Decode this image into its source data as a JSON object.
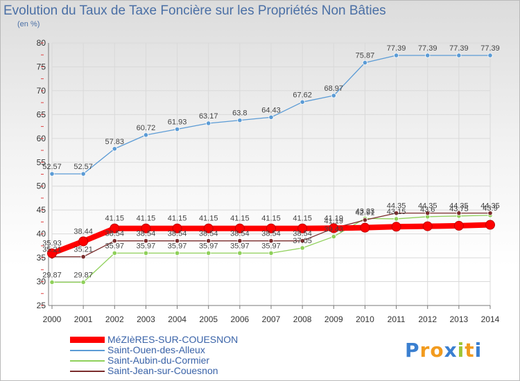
{
  "title": "Evolution du Taux de Taxe Foncière sur les Propriétés Non Bâties",
  "unit_label": "(en %)",
  "logo": {
    "letters": [
      "P",
      "r",
      "o",
      "x",
      "i",
      "t",
      "i"
    ],
    "colors": [
      "#3a7fd0",
      "#f29b1e",
      "#f29b1e",
      "#3a7fd0",
      "#9ec536",
      "#f29b1e",
      "#3a7fd0"
    ]
  },
  "chart_data": {
    "type": "line",
    "title": "Evolution du Taux de Taxe Foncière sur les Propriétés Non Bâties",
    "ylabel": "(en %)",
    "xlabel": "",
    "ylim": [
      25,
      80
    ],
    "yticks": [
      25,
      30,
      35,
      40,
      45,
      50,
      55,
      60,
      65,
      70,
      75,
      80
    ],
    "categories": [
      "2000",
      "2001",
      "2002",
      "2003",
      "2004",
      "2005",
      "2006",
      "2007",
      "2008",
      "2009",
      "2010",
      "2011",
      "2012",
      "2013",
      "2014"
    ],
    "grid": true,
    "series": [
      {
        "name": "MéZIèRES-SUR-COUESNON",
        "color": "#ff0000",
        "values": [
          35.93,
          38.44,
          41.15,
          41.15,
          41.15,
          41.15,
          41.15,
          41.15,
          41.15,
          41.19,
          41.3,
          41.5,
          41.6,
          41.7,
          41.9
        ],
        "labels": [
          "35.93",
          "38.44",
          "41.15",
          "41.15",
          "41.15",
          "41.15",
          "41.15",
          "41.15",
          "41.15",
          "41.19",
          "",
          "",
          "",
          "",
          ""
        ]
      },
      {
        "name": "Saint-Ouen-des-Alleux",
        "color": "#5b9bd5",
        "values": [
          52.57,
          52.57,
          57.83,
          60.72,
          61.93,
          63.17,
          63.8,
          64.43,
          67.62,
          68.97,
          75.87,
          77.39,
          77.39,
          77.39,
          77.39
        ],
        "labels": [
          "52.57",
          "52.57",
          "57.83",
          "60.72",
          "61.93",
          "63.17",
          "63.8",
          "64.43",
          "67.62",
          "68.97",
          "75.87",
          "77.39",
          "77.39",
          "77.39",
          "77.39"
        ]
      },
      {
        "name": "Saint-Aubin-du-Cormier",
        "color": "#8fd05a",
        "values": [
          29.87,
          29.87,
          35.97,
          35.97,
          35.97,
          35.97,
          35.97,
          35.97,
          37.05,
          39.43,
          43.23,
          43.15,
          43.6,
          43.75,
          43.9
        ],
        "labels": [
          "29.87",
          "29.87",
          "35.97",
          "35.97",
          "35.97",
          "35.97",
          "35.97",
          "35.97",
          "37.05",
          "39.43",
          "43.23",
          "43.15",
          "43.6",
          "43.75",
          "43.9"
        ]
      },
      {
        "name": "Saint-Jean-sur-Couesnon",
        "color": "#7a2c2c",
        "values": [
          35.21,
          35.21,
          38.54,
          38.54,
          38.54,
          38.54,
          38.54,
          38.54,
          38.54,
          41.19,
          42.91,
          44.35,
          44.35,
          44.35,
          44.35
        ],
        "labels": [
          "35.21",
          "35.21",
          "38.54",
          "38.54",
          "38.54",
          "38.54",
          "38.54",
          "38.54",
          "38.54",
          "41.19",
          "42.91",
          "44.35",
          "44.35",
          "44.35",
          "44.35"
        ]
      }
    ]
  }
}
